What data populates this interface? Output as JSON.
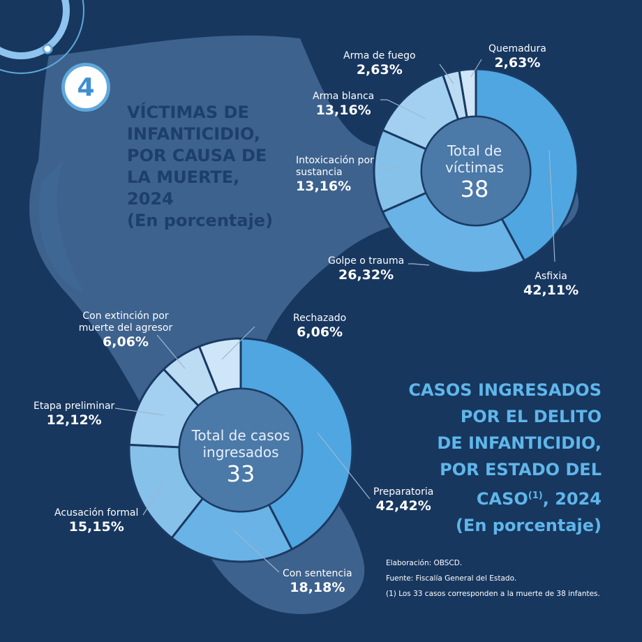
{
  "badge": {
    "number": "4"
  },
  "section1": {
    "title_lines": [
      "VÍCTIMAS DE",
      "INFANTICIDIO,",
      "POR CAUSA DE",
      "LA MUERTE, 2024"
    ],
    "subtitle": "(En porcentaje)",
    "center_line1": "Total de",
    "center_line2": "víctimas",
    "center_value": "38"
  },
  "section2": {
    "title_lines": [
      "CASOS INGRESADOS",
      "POR EL DELITO",
      "DE INFANTICIDIO,",
      "POR ESTADO DEL"
    ],
    "title_last_pre": "CASO",
    "title_last_sup": "(1)",
    "title_last_post": ", 2024",
    "subtitle": "(En porcentaje)",
    "center_line1": "Total de casos",
    "center_line2": "ingresados",
    "center_value": "33"
  },
  "notes": {
    "elaboracion": "Elaboración: OBSCD.",
    "fuente": "Fuente: Fiscalía General del Estado.",
    "nota1": "(1) Los 33 casos corresponden a la muerte de 38 infantes."
  },
  "colors": {
    "background": "#17375f",
    "accent_light": "#5fb6ea",
    "title_dark": "#1c3f6b",
    "segment_main": "#4fa6e0",
    "segment_2": "#69b3e6",
    "segment_3": "#86c1ea",
    "segment_4": "#a3d0f0",
    "segment_5": "#bcdcf4",
    "segment_6": "#cfe6f8"
  },
  "chart_data": [
    {
      "type": "pie",
      "title": "VÍCTIMAS DE INFANTICIDIO, POR CAUSA DE LA MUERTE, 2024 (En porcentaje)",
      "total": 38,
      "categories": [
        "Asfixia",
        "Golpe o trauma",
        "Intoxicación por sustancia",
        "Arma blanca",
        "Arma de fuego",
        "Quemadura"
      ],
      "values": [
        42.11,
        26.32,
        13.16,
        13.16,
        2.63,
        2.63
      ],
      "value_labels": [
        "42,11%",
        "26,32%",
        "13,16%",
        "13,16%",
        "2,63%",
        "2,63%"
      ]
    },
    {
      "type": "pie",
      "title": "CASOS INGRESADOS POR EL DELITO DE INFANTICIDIO, POR ESTADO DEL CASO(1), 2024 (En porcentaje)",
      "total": 33,
      "categories": [
        "Preparatoria",
        "Con sentencia",
        "Acusación formal",
        "Etapa preliminar",
        "Con extinción por muerte del agresor",
        "Rechazado"
      ],
      "values": [
        42.42,
        18.18,
        15.15,
        12.12,
        6.06,
        6.06
      ],
      "value_labels": [
        "42,42%",
        "18,18%",
        "15,15%",
        "12,12%",
        "6,06%",
        "6,06%"
      ]
    }
  ]
}
